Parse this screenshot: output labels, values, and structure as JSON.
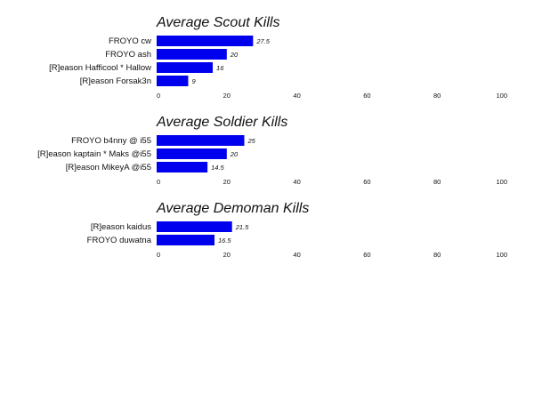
{
  "chart_data": [
    {
      "type": "bar",
      "orientation": "horizontal",
      "title": "Average Scout Kills",
      "categories": [
        "FROYO cw",
        "FROYO ash",
        "[R]eason Hafficool * Hallow",
        "[R]eason Forsak3n"
      ],
      "values": [
        27.5,
        20,
        16,
        9
      ],
      "xlim": [
        0,
        100
      ],
      "ticks": [
        0,
        20,
        40,
        60,
        80,
        100
      ],
      "data_labels": [
        "27.5",
        "20",
        "16",
        "9"
      ],
      "color": "#0000ee",
      "grid": false
    },
    {
      "type": "bar",
      "orientation": "horizontal",
      "title": "Average Soldier Kills",
      "categories": [
        "FROYO b4nny @ i55",
        "[R]eason kaptain * Maks @i55",
        "[R]eason MikeyA @i55"
      ],
      "values": [
        25,
        20,
        14.5
      ],
      "xlim": [
        0,
        100
      ],
      "ticks": [
        0,
        20,
        40,
        60,
        80,
        100
      ],
      "data_labels": [
        "25",
        "20",
        "14.5"
      ],
      "color": "#0000ee",
      "grid": false
    },
    {
      "type": "bar",
      "orientation": "horizontal",
      "title": "Average Demoman Kills",
      "categories": [
        "[R]eason kaidus",
        "FROYO duwatna"
      ],
      "values": [
        21.5,
        16.5
      ],
      "xlim": [
        0,
        100
      ],
      "ticks": [
        0,
        20,
        40,
        60,
        80,
        100
      ],
      "data_labels": [
        "21.5",
        "16.5"
      ],
      "color": "#0000ee",
      "grid": false
    }
  ]
}
